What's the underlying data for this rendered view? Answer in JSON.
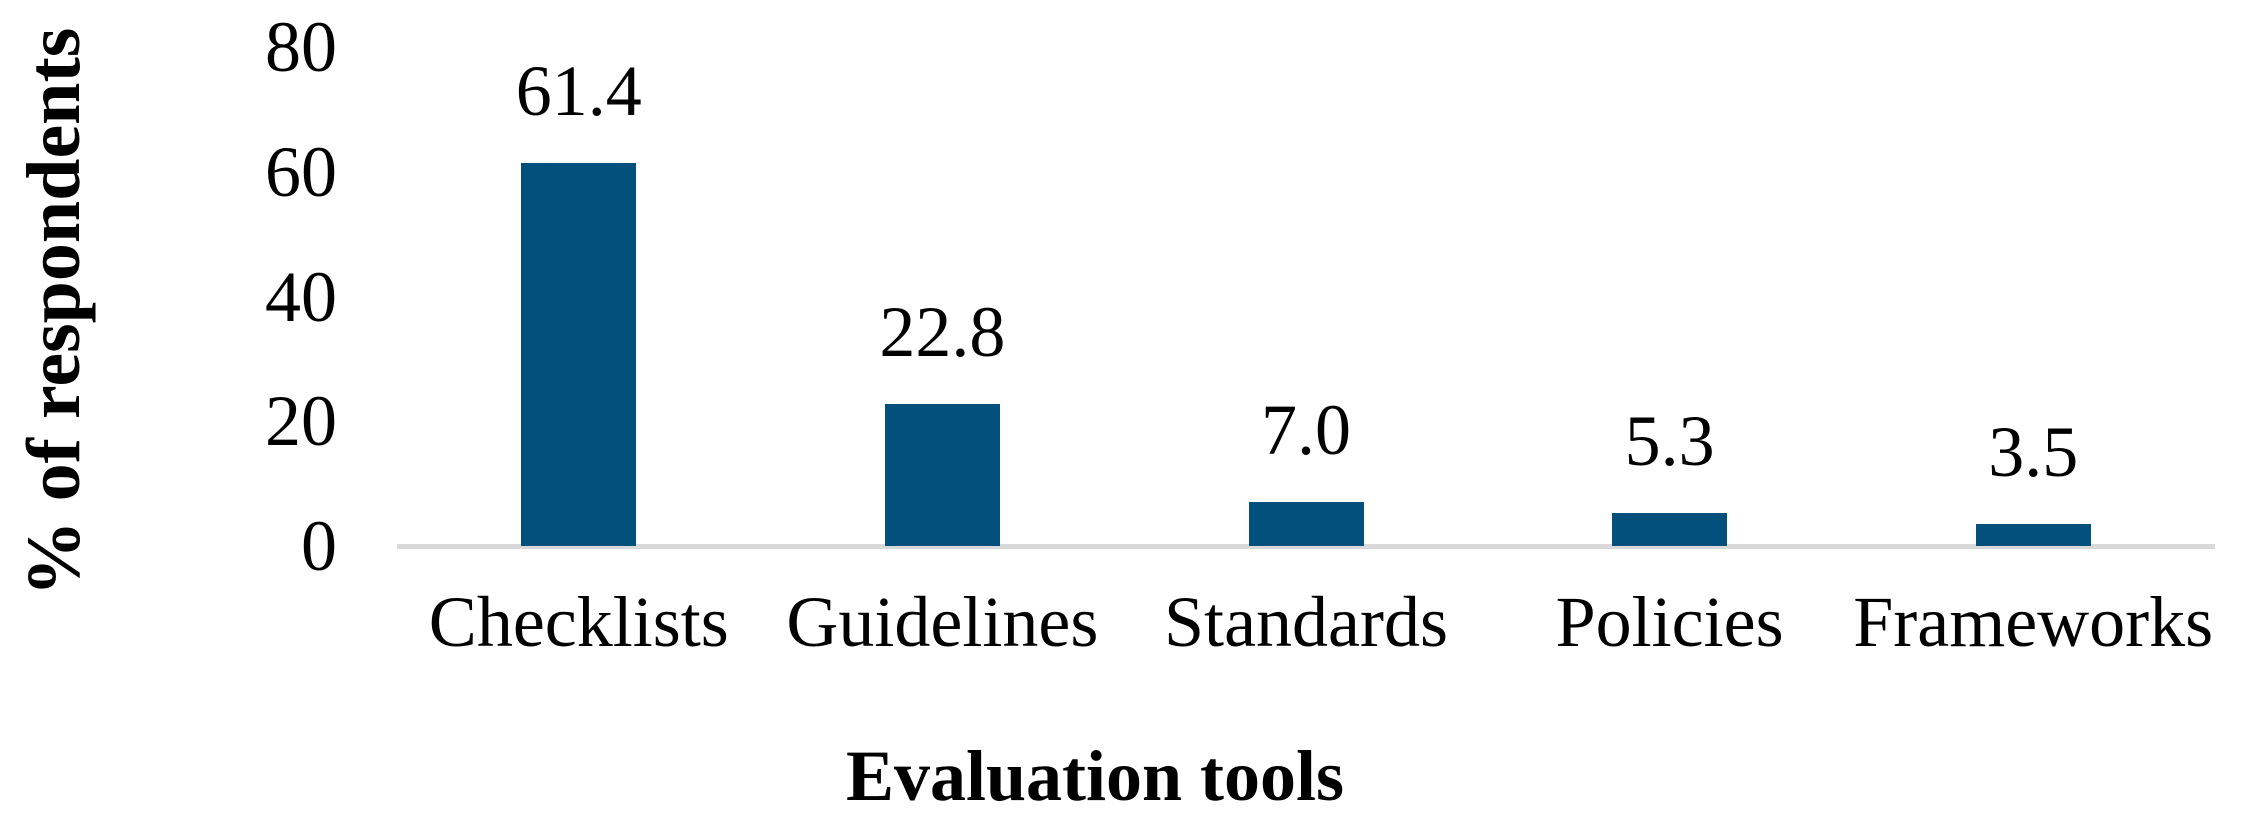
{
  "chart_data": {
    "type": "bar",
    "title": "",
    "xlabel": "Evaluation tools",
    "ylabel": "% of respondents",
    "categories": [
      "Checklists",
      "Guidelines",
      "Standards",
      "Policies",
      "Frameworks"
    ],
    "values": [
      61.4,
      22.8,
      7.0,
      5.3,
      3.5
    ],
    "data_labels": [
      "61.4",
      "22.8",
      "7.0",
      "5.3",
      "3.5"
    ],
    "ylim": [
      0,
      80
    ],
    "yticks": [
      {
        "label": "80",
        "value": 80
      },
      {
        "label": "60",
        "value": 60
      },
      {
        "label": "40",
        "value": 40
      },
      {
        "label": "20",
        "value": 20
      },
      {
        "label": "0",
        "value": 0
      }
    ],
    "grid": "off",
    "legend": "none",
    "bar_color": "#04507C",
    "axis_line_color": "#D9D9D9",
    "text_color": "#000000"
  }
}
